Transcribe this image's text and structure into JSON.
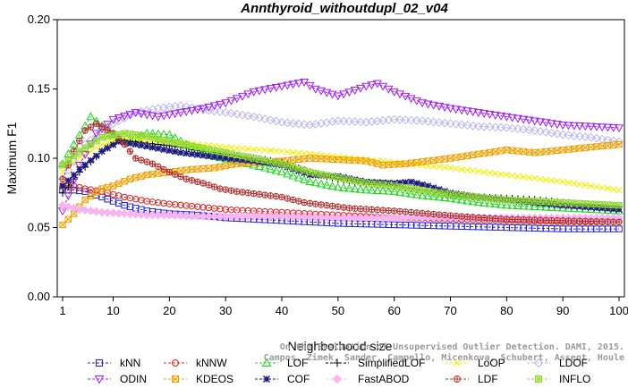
{
  "chart_data": {
    "type": "line",
    "title": "Annthyroid_withoutdupl_02_v04",
    "xlabel": "Neighborhood size",
    "ylabel": "Maximum F1",
    "xlim": [
      1,
      100
    ],
    "ylim": [
      0.0,
      0.2
    ],
    "x_ticks": [
      "1",
      "10",
      "20",
      "30",
      "40",
      "50",
      "60",
      "70",
      "80",
      "90",
      "100"
    ],
    "y_ticks": [
      "0.00",
      "0.05",
      "0.10",
      "0.15",
      "0.20"
    ],
    "grid": false,
    "legend_position": "bottom",
    "watermark": "Campos, Zimek, Sander, Campello, Micenkova, Schubert, Assent, Houle On the Evaluation of Unsupervised Outlier Detection. DAMI, 2015.",
    "series": [
      {
        "name": "kNN",
        "color": "#2020d8",
        "marker": "square",
        "points": [
          [
            1,
            0.077
          ],
          [
            3,
            0.077
          ],
          [
            5,
            0.076
          ],
          [
            8,
            0.072
          ],
          [
            12,
            0.066
          ],
          [
            16,
            0.062
          ],
          [
            20,
            0.06
          ],
          [
            25,
            0.059
          ],
          [
            30,
            0.057
          ],
          [
            40,
            0.055
          ],
          [
            50,
            0.053
          ],
          [
            60,
            0.052
          ],
          [
            70,
            0.051
          ],
          [
            80,
            0.05
          ],
          [
            90,
            0.049
          ],
          [
            100,
            0.049
          ]
        ]
      },
      {
        "name": "kNNW",
        "color": "#e02020",
        "marker": "circle",
        "points": [
          [
            1,
            0.08
          ],
          [
            3,
            0.08
          ],
          [
            5,
            0.078
          ],
          [
            8,
            0.076
          ],
          [
            12,
            0.072
          ],
          [
            16,
            0.069
          ],
          [
            20,
            0.067
          ],
          [
            25,
            0.065
          ],
          [
            30,
            0.063
          ],
          [
            40,
            0.061
          ],
          [
            50,
            0.059
          ],
          [
            60,
            0.057
          ],
          [
            70,
            0.056
          ],
          [
            80,
            0.055
          ],
          [
            90,
            0.054
          ],
          [
            100,
            0.054
          ]
        ]
      },
      {
        "name": "LOF",
        "color": "#20d820",
        "marker": "triangle-up",
        "points": [
          [
            1,
            0.096
          ],
          [
            3,
            0.11
          ],
          [
            6,
            0.13
          ],
          [
            9,
            0.12
          ],
          [
            12,
            0.112
          ],
          [
            16,
            0.118
          ],
          [
            20,
            0.117
          ],
          [
            23,
            0.11
          ],
          [
            27,
            0.102
          ],
          [
            32,
            0.098
          ],
          [
            40,
            0.09
          ],
          [
            45,
            0.083
          ],
          [
            50,
            0.079
          ],
          [
            55,
            0.077
          ],
          [
            60,
            0.076
          ],
          [
            65,
            0.073
          ],
          [
            70,
            0.071
          ],
          [
            75,
            0.068
          ],
          [
            80,
            0.066
          ],
          [
            90,
            0.064
          ],
          [
            100,
            0.062
          ]
        ]
      },
      {
        "name": "SimplifiedLOF",
        "color": "#000000",
        "marker": "plus",
        "points": [
          [
            1,
            0.075
          ],
          [
            4,
            0.09
          ],
          [
            8,
            0.105
          ],
          [
            11,
            0.113
          ],
          [
            14,
            0.112
          ],
          [
            18,
            0.11
          ],
          [
            22,
            0.108
          ],
          [
            26,
            0.105
          ],
          [
            30,
            0.103
          ],
          [
            35,
            0.1
          ],
          [
            40,
            0.097
          ],
          [
            45,
            0.09
          ],
          [
            50,
            0.085
          ],
          [
            55,
            0.082
          ],
          [
            60,
            0.08
          ],
          [
            65,
            0.077
          ],
          [
            70,
            0.074
          ],
          [
            75,
            0.072
          ],
          [
            80,
            0.071
          ],
          [
            85,
            0.07
          ],
          [
            90,
            0.068
          ],
          [
            100,
            0.065
          ]
        ]
      },
      {
        "name": "LoOP",
        "color": "#f0f000",
        "marker": "cross",
        "points": [
          [
            1,
            0.09
          ],
          [
            4,
            0.1
          ],
          [
            8,
            0.11
          ],
          [
            12,
            0.115
          ],
          [
            16,
            0.113
          ],
          [
            20,
            0.112
          ],
          [
            25,
            0.11
          ],
          [
            30,
            0.108
          ],
          [
            40,
            0.105
          ],
          [
            50,
            0.101
          ],
          [
            60,
            0.097
          ],
          [
            70,
            0.093
          ],
          [
            80,
            0.088
          ],
          [
            90,
            0.083
          ],
          [
            100,
            0.077
          ]
        ]
      },
      {
        "name": "LDOF",
        "color": "#b8b8f0",
        "marker": "diamond",
        "points": [
          [
            1,
            0.085
          ],
          [
            5,
            0.11
          ],
          [
            10,
            0.125
          ],
          [
            14,
            0.133
          ],
          [
            18,
            0.136
          ],
          [
            22,
            0.138
          ],
          [
            26,
            0.135
          ],
          [
            30,
            0.133
          ],
          [
            35,
            0.13
          ],
          [
            40,
            0.126
          ],
          [
            45,
            0.124
          ],
          [
            50,
            0.127
          ],
          [
            55,
            0.126
          ],
          [
            60,
            0.128
          ],
          [
            65,
            0.127
          ],
          [
            70,
            0.125
          ],
          [
            75,
            0.123
          ],
          [
            80,
            0.122
          ],
          [
            85,
            0.12
          ],
          [
            90,
            0.117
          ],
          [
            95,
            0.115
          ],
          [
            100,
            0.112
          ]
        ]
      },
      {
        "name": "ODIN",
        "color": "#a020f0",
        "marker": "triangle-down",
        "points": [
          [
            1,
            0.062
          ],
          [
            4,
            0.095
          ],
          [
            7,
            0.118
          ],
          [
            10,
            0.128
          ],
          [
            14,
            0.133
          ],
          [
            18,
            0.13
          ],
          [
            22,
            0.133
          ],
          [
            26,
            0.136
          ],
          [
            30,
            0.14
          ],
          [
            35,
            0.148
          ],
          [
            40,
            0.152
          ],
          [
            44,
            0.155
          ],
          [
            46,
            0.15
          ],
          [
            50,
            0.145
          ],
          [
            55,
            0.152
          ],
          [
            57,
            0.154
          ],
          [
            60,
            0.148
          ],
          [
            65,
            0.14
          ],
          [
            70,
            0.136
          ],
          [
            75,
            0.133
          ],
          [
            80,
            0.13
          ],
          [
            85,
            0.127
          ],
          [
            90,
            0.124
          ],
          [
            95,
            0.123
          ],
          [
            100,
            0.122
          ]
        ]
      },
      {
        "name": "KDEOS",
        "color": "#f0a000",
        "marker": "square-x",
        "points": [
          [
            1,
            0.052
          ],
          [
            3,
            0.06
          ],
          [
            5,
            0.07
          ],
          [
            8,
            0.078
          ],
          [
            10,
            0.08
          ],
          [
            13,
            0.085
          ],
          [
            16,
            0.088
          ],
          [
            20,
            0.09
          ],
          [
            24,
            0.092
          ],
          [
            28,
            0.093
          ],
          [
            32,
            0.096
          ],
          [
            36,
            0.097
          ],
          [
            40,
            0.098
          ],
          [
            45,
            0.1
          ],
          [
            50,
            0.099
          ],
          [
            55,
            0.098
          ],
          [
            58,
            0.095
          ],
          [
            62,
            0.096
          ],
          [
            66,
            0.098
          ],
          [
            70,
            0.1
          ],
          [
            75,
            0.103
          ],
          [
            80,
            0.106
          ],
          [
            85,
            0.104
          ],
          [
            90,
            0.106
          ],
          [
            95,
            0.108
          ],
          [
            100,
            0.11
          ]
        ]
      },
      {
        "name": "COF",
        "color": "#1c1c80",
        "marker": "asterisk",
        "points": [
          [
            1,
            0.08
          ],
          [
            4,
            0.092
          ],
          [
            8,
            0.105
          ],
          [
            11,
            0.112
          ],
          [
            14,
            0.11
          ],
          [
            18,
            0.107
          ],
          [
            22,
            0.104
          ],
          [
            26,
            0.102
          ],
          [
            30,
            0.1
          ],
          [
            35,
            0.098
          ],
          [
            40,
            0.095
          ],
          [
            45,
            0.088
          ],
          [
            50,
            0.087
          ],
          [
            55,
            0.083
          ],
          [
            60,
            0.082
          ],
          [
            63,
            0.083
          ],
          [
            66,
            0.08
          ],
          [
            70,
            0.075
          ],
          [
            75,
            0.072
          ],
          [
            80,
            0.07
          ],
          [
            85,
            0.068
          ],
          [
            90,
            0.066
          ],
          [
            100,
            0.063
          ]
        ]
      },
      {
        "name": "FastABOD",
        "color": "#f8b4f0",
        "marker": "diamond-filled",
        "points": [
          [
            1,
            0.066
          ],
          [
            4,
            0.063
          ],
          [
            8,
            0.061
          ],
          [
            12,
            0.06
          ],
          [
            16,
            0.059
          ],
          [
            20,
            0.059
          ],
          [
            25,
            0.058
          ],
          [
            30,
            0.058
          ],
          [
            40,
            0.058
          ],
          [
            50,
            0.057
          ],
          [
            60,
            0.057
          ],
          [
            70,
            0.057
          ],
          [
            80,
            0.057
          ],
          [
            90,
            0.057
          ],
          [
            100,
            0.057
          ]
        ]
      },
      {
        "name": "LDF",
        "color": "#b03030",
        "marker": "circle-plus",
        "points": [
          [
            1,
            0.085
          ],
          [
            3,
            0.105
          ],
          [
            5,
            0.12
          ],
          [
            7,
            0.125
          ],
          [
            10,
            0.118
          ],
          [
            12,
            0.11
          ],
          [
            14,
            0.1
          ],
          [
            17,
            0.096
          ],
          [
            20,
            0.09
          ],
          [
            23,
            0.085
          ],
          [
            26,
            0.082
          ],
          [
            29,
            0.078
          ],
          [
            32,
            0.076
          ],
          [
            36,
            0.074
          ],
          [
            40,
            0.072
          ],
          [
            44,
            0.068
          ],
          [
            48,
            0.066
          ],
          [
            52,
            0.064
          ],
          [
            56,
            0.063
          ],
          [
            60,
            0.062
          ],
          [
            66,
            0.06
          ],
          [
            72,
            0.058
          ],
          [
            80,
            0.056
          ],
          [
            90,
            0.055
          ],
          [
            100,
            0.054
          ]
        ]
      },
      {
        "name": "INFLO",
        "color": "#90d830",
        "marker": "square-star",
        "points": [
          [
            1,
            0.095
          ],
          [
            4,
            0.105
          ],
          [
            8,
            0.115
          ],
          [
            12,
            0.118
          ],
          [
            16,
            0.116
          ],
          [
            20,
            0.112
          ],
          [
            25,
            0.108
          ],
          [
            30,
            0.104
          ],
          [
            35,
            0.1
          ],
          [
            40,
            0.096
          ],
          [
            45,
            0.09
          ],
          [
            50,
            0.086
          ],
          [
            55,
            0.082
          ],
          [
            60,
            0.08
          ],
          [
            65,
            0.077
          ],
          [
            70,
            0.074
          ],
          [
            75,
            0.072
          ],
          [
            80,
            0.07
          ],
          [
            85,
            0.069
          ],
          [
            90,
            0.068
          ],
          [
            100,
            0.066
          ]
        ]
      }
    ]
  }
}
